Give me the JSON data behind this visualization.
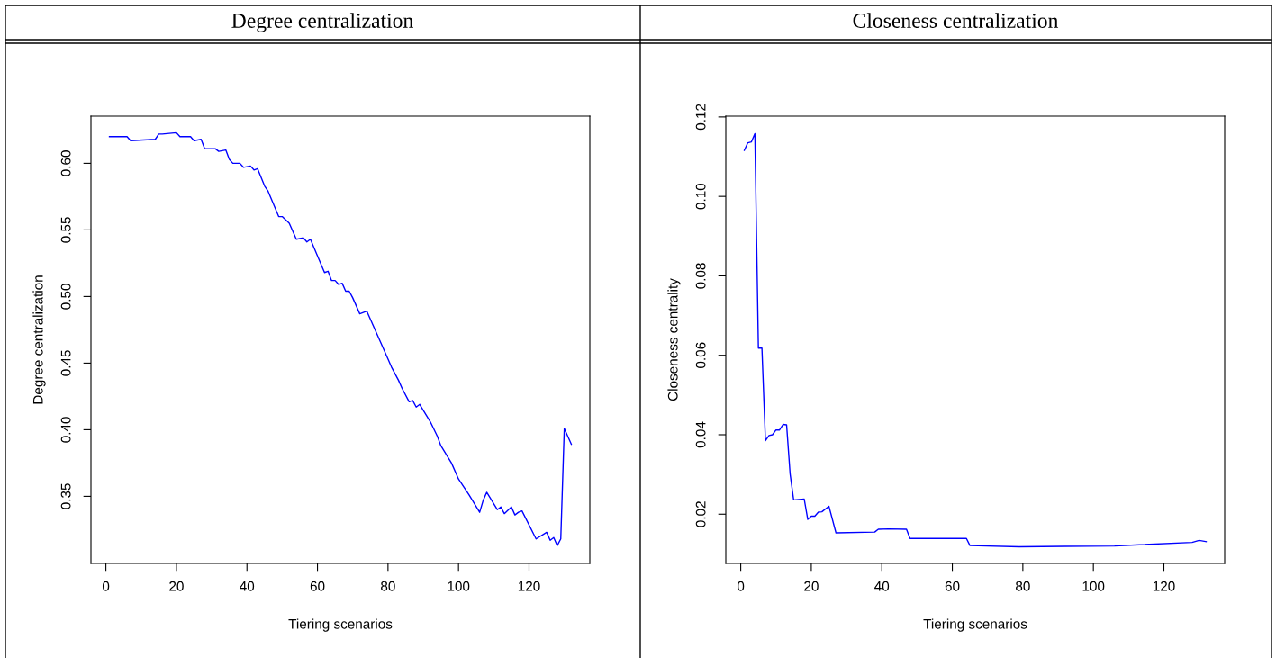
{
  "chart_data": [
    {
      "type": "line",
      "title": "Degree centralization",
      "xlabel": "Tiering scenarios",
      "ylabel": "Degree centralization",
      "xlim": [
        -4.24,
        137.24
      ],
      "ylim": [
        0.2996,
        0.6354
      ],
      "xticks": [
        0,
        20,
        40,
        60,
        80,
        100,
        120
      ],
      "yticks": [
        0.35,
        {
          "value": 0.4,
          "label": "0.40"
        },
        0.45,
        {
          "value": 0.5,
          "label": "0.50"
        },
        0.55,
        {
          "value": 0.6,
          "label": "0.60"
        }
      ],
      "grid": false,
      "series": [
        {
          "color": "#0000ff",
          "x": [
            1,
            6,
            7,
            14,
            15,
            16,
            20,
            21,
            24,
            25,
            27,
            28,
            31,
            32,
            34,
            35,
            36,
            38,
            39,
            41,
            42,
            43,
            45,
            46,
            49,
            50,
            52,
            54,
            56,
            57,
            58,
            62,
            63,
            64,
            65,
            66,
            67,
            68,
            69,
            70,
            72,
            74,
            77,
            79,
            81,
            83,
            84,
            86,
            87,
            88,
            89,
            92,
            94,
            95,
            98,
            100,
            103,
            106,
            107,
            108,
            111,
            112,
            113,
            115,
            116,
            117,
            118,
            122,
            125,
            126,
            127,
            128,
            129,
            130,
            132
          ],
          "values": [
            0.62,
            0.62,
            0.617,
            0.618,
            0.622,
            0.622,
            0.623,
            0.62,
            0.62,
            0.617,
            0.618,
            0.611,
            0.611,
            0.609,
            0.61,
            0.603,
            0.6,
            0.6,
            0.597,
            0.598,
            0.595,
            0.596,
            0.583,
            0.579,
            0.56,
            0.56,
            0.555,
            0.543,
            0.544,
            0.541,
            0.543,
            0.518,
            0.519,
            0.512,
            0.512,
            0.509,
            0.51,
            0.504,
            0.504,
            0.499,
            0.487,
            0.489,
            0.471,
            0.459,
            0.447,
            0.437,
            0.431,
            0.421,
            0.422,
            0.417,
            0.419,
            0.406,
            0.395,
            0.388,
            0.375,
            0.363,
            0.351,
            0.338,
            0.347,
            0.353,
            0.34,
            0.342,
            0.337,
            0.342,
            0.336,
            0.338,
            0.339,
            0.318,
            0.323,
            0.317,
            0.319,
            0.313,
            0.318,
            0.401,
            0.389
          ]
        }
      ]
    },
    {
      "type": "line",
      "title": "Closeness centralization",
      "xlabel": "Tiering scenarios",
      "ylabel": "Closeness centrality",
      "xlim": [
        -4.24,
        137.24
      ],
      "ylim": [
        0.0076,
        0.1202
      ],
      "xticks": [
        0,
        20,
        40,
        60,
        80,
        100,
        120
      ],
      "yticks": [
        0.02,
        0.04,
        0.06,
        0.08,
        {
          "value": 0.1,
          "label": "0.10"
        },
        0.12
      ],
      "grid": false,
      "series": [
        {
          "color": "#0000ff",
          "x": [
            1,
            2,
            3,
            4,
            5,
            6,
            7,
            8,
            9,
            10,
            11,
            12,
            13,
            14,
            15,
            18,
            19,
            20,
            21,
            22,
            23,
            25,
            27,
            38,
            39,
            42,
            47,
            48,
            57,
            64,
            65,
            79,
            92,
            106,
            113,
            128,
            130,
            132
          ],
          "values": [
            0.1116,
            0.1135,
            0.1137,
            0.1158,
            0.0618,
            0.0618,
            0.0385,
            0.0398,
            0.04,
            0.0412,
            0.0412,
            0.0426,
            0.0425,
            0.0301,
            0.0236,
            0.0238,
            0.0187,
            0.0195,
            0.0195,
            0.0205,
            0.0206,
            0.022,
            0.0153,
            0.0155,
            0.0162,
            0.0163,
            0.0162,
            0.0139,
            0.0139,
            0.0139,
            0.0121,
            0.0118,
            0.0119,
            0.012,
            0.0123,
            0.0129,
            0.0134,
            0.0131
          ]
        }
      ]
    }
  ]
}
